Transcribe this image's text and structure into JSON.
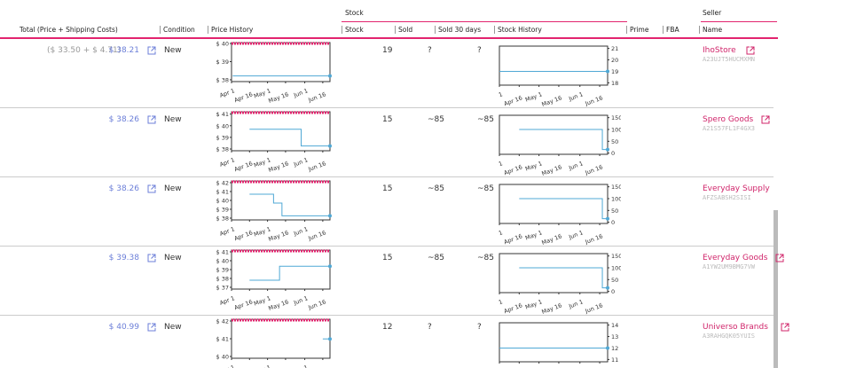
{
  "header": {
    "groups": {
      "stock": "Stock",
      "seller": "Seller"
    },
    "columns": {
      "total": "Total (Price + Shipping Costs)",
      "condition": "Condition",
      "price_history": "Price History",
      "stock": "Stock",
      "sold": "Sold",
      "sold_30": "Sold 30 days",
      "stock_history": "Stock History",
      "prime": "Prime",
      "fba": "FBA",
      "name": "Name"
    }
  },
  "history_xlim": [
    0,
    82
  ],
  "history_xticks": [
    {
      "value": 0,
      "label": "Apr 1"
    },
    {
      "value": 15,
      "label": "Apr 16"
    },
    {
      "value": 30,
      "label": "May 1"
    },
    {
      "value": 45,
      "label": "May 16"
    },
    {
      "value": 61,
      "label": "Jun 1"
    },
    {
      "value": 76,
      "label": "Jun 16"
    }
  ],
  "line_color": "#4fa8d5",
  "table": {
    "rows": [
      {
        "breakdown": "($ 33.50 + $ 4.71)",
        "total": "$ 38.21",
        "condition": "New",
        "price_history": {
          "type": "line",
          "ylim": [
            37.9,
            40.05
          ],
          "yticks": [
            {
              "value": 40,
              "label": "$ 40"
            },
            {
              "value": 39,
              "label": "$ 39"
            },
            {
              "value": 38,
              "label": "$ 38"
            }
          ],
          "x": [
            1,
            82
          ],
          "values": [
            38.21,
            38.21
          ]
        },
        "stock": "19",
        "sold": "?",
        "sold_30": "?",
        "stock_history": {
          "type": "line",
          "ylim": [
            17.8,
            21.2
          ],
          "yticks": [
            21,
            20,
            19,
            18
          ],
          "x": [
            0,
            82
          ],
          "values": [
            19,
            19
          ]
        },
        "name": "IhoStore",
        "seller_id": "A23UJT5HUCMXMN"
      },
      {
        "total": "$ 38.26",
        "condition": "New",
        "price_history": {
          "type": "line",
          "ylim": [
            37.85,
            41.2
          ],
          "yticks": [
            {
              "value": 41,
              "label": "$ 41"
            },
            {
              "value": 40,
              "label": "$ 40"
            },
            {
              "value": 39,
              "label": "$ 39"
            },
            {
              "value": 38,
              "label": "$ 38"
            }
          ],
          "x": [
            15,
            58,
            82
          ],
          "values": [
            39.7,
            38.26,
            38.26
          ]
        },
        "stock": "15",
        "sold": "~85",
        "sold_30": "~85",
        "stock_history": {
          "type": "line",
          "ylim": [
            -5,
            160
          ],
          "yticks": [
            150,
            100,
            50,
            0
          ],
          "x": [
            15,
            78,
            82
          ],
          "values": [
            100,
            15,
            15
          ]
        },
        "name": "Spero Goods",
        "seller_id": "A21S57FL1F4GX3"
      },
      {
        "total": "$ 38.26",
        "condition": "New",
        "price_history": {
          "type": "line",
          "ylim": [
            37.8,
            42.2
          ],
          "yticks": [
            {
              "value": 42,
              "label": "$ 42"
            },
            {
              "value": 41,
              "label": "$ 41"
            },
            {
              "value": 40,
              "label": "$ 40"
            },
            {
              "value": 39,
              "label": "$ 39"
            },
            {
              "value": 38,
              "label": "$ 38"
            }
          ],
          "x": [
            15,
            35,
            42,
            82
          ],
          "values": [
            40.7,
            39.7,
            38.26,
            38.26
          ]
        },
        "stock": "15",
        "sold": "~85",
        "sold_30": "~85",
        "stock_history": {
          "type": "line",
          "ylim": [
            -5,
            160
          ],
          "yticks": [
            150,
            100,
            50,
            0
          ],
          "x": [
            15,
            78,
            82
          ],
          "values": [
            100,
            15,
            15
          ]
        },
        "name": "Everyday Supply Co",
        "seller_id": "AFZSABSH2SISI"
      },
      {
        "total": "$ 39.38",
        "condition": "New",
        "price_history": {
          "type": "line",
          "ylim": [
            36.8,
            41.2
          ],
          "yticks": [
            {
              "value": 41,
              "label": "$ 41"
            },
            {
              "value": 40,
              "label": "$ 40"
            },
            {
              "value": 39,
              "label": "$ 39"
            },
            {
              "value": 38,
              "label": "$ 38"
            },
            {
              "value": 37,
              "label": "$ 37"
            }
          ],
          "x": [
            15,
            40,
            82
          ],
          "values": [
            37.8,
            39.38,
            39.38
          ]
        },
        "stock": "15",
        "sold": "~85",
        "sold_30": "~85",
        "stock_history": {
          "type": "line",
          "ylim": [
            -5,
            160
          ],
          "yticks": [
            150,
            100,
            50,
            0
          ],
          "x": [
            15,
            78,
            82
          ],
          "values": [
            100,
            15,
            15
          ]
        },
        "name": "Everyday Goods",
        "seller_id": "A1YW2UM9BMG7VW"
      },
      {
        "total": "$ 40.99",
        "condition": "New",
        "price_history": {
          "type": "line",
          "ylim": [
            39.9,
            42.1
          ],
          "yticks": [
            {
              "value": 42,
              "label": "$ 42"
            },
            {
              "value": 41,
              "label": "$ 41"
            },
            {
              "value": 40,
              "label": "$ 40"
            }
          ],
          "x": [
            76,
            82
          ],
          "values": [
            40.99,
            40.99
          ]
        },
        "stock": "12",
        "sold": "?",
        "sold_30": "?",
        "stock_history": {
          "type": "line",
          "ylim": [
            10.8,
            14.2
          ],
          "yticks": [
            14,
            13,
            12,
            11
          ],
          "x": [
            0,
            82
          ],
          "values": [
            12,
            12
          ]
        },
        "name": "Universo Brands",
        "seller_id": "A3RAHGQK05YUIS"
      }
    ]
  }
}
